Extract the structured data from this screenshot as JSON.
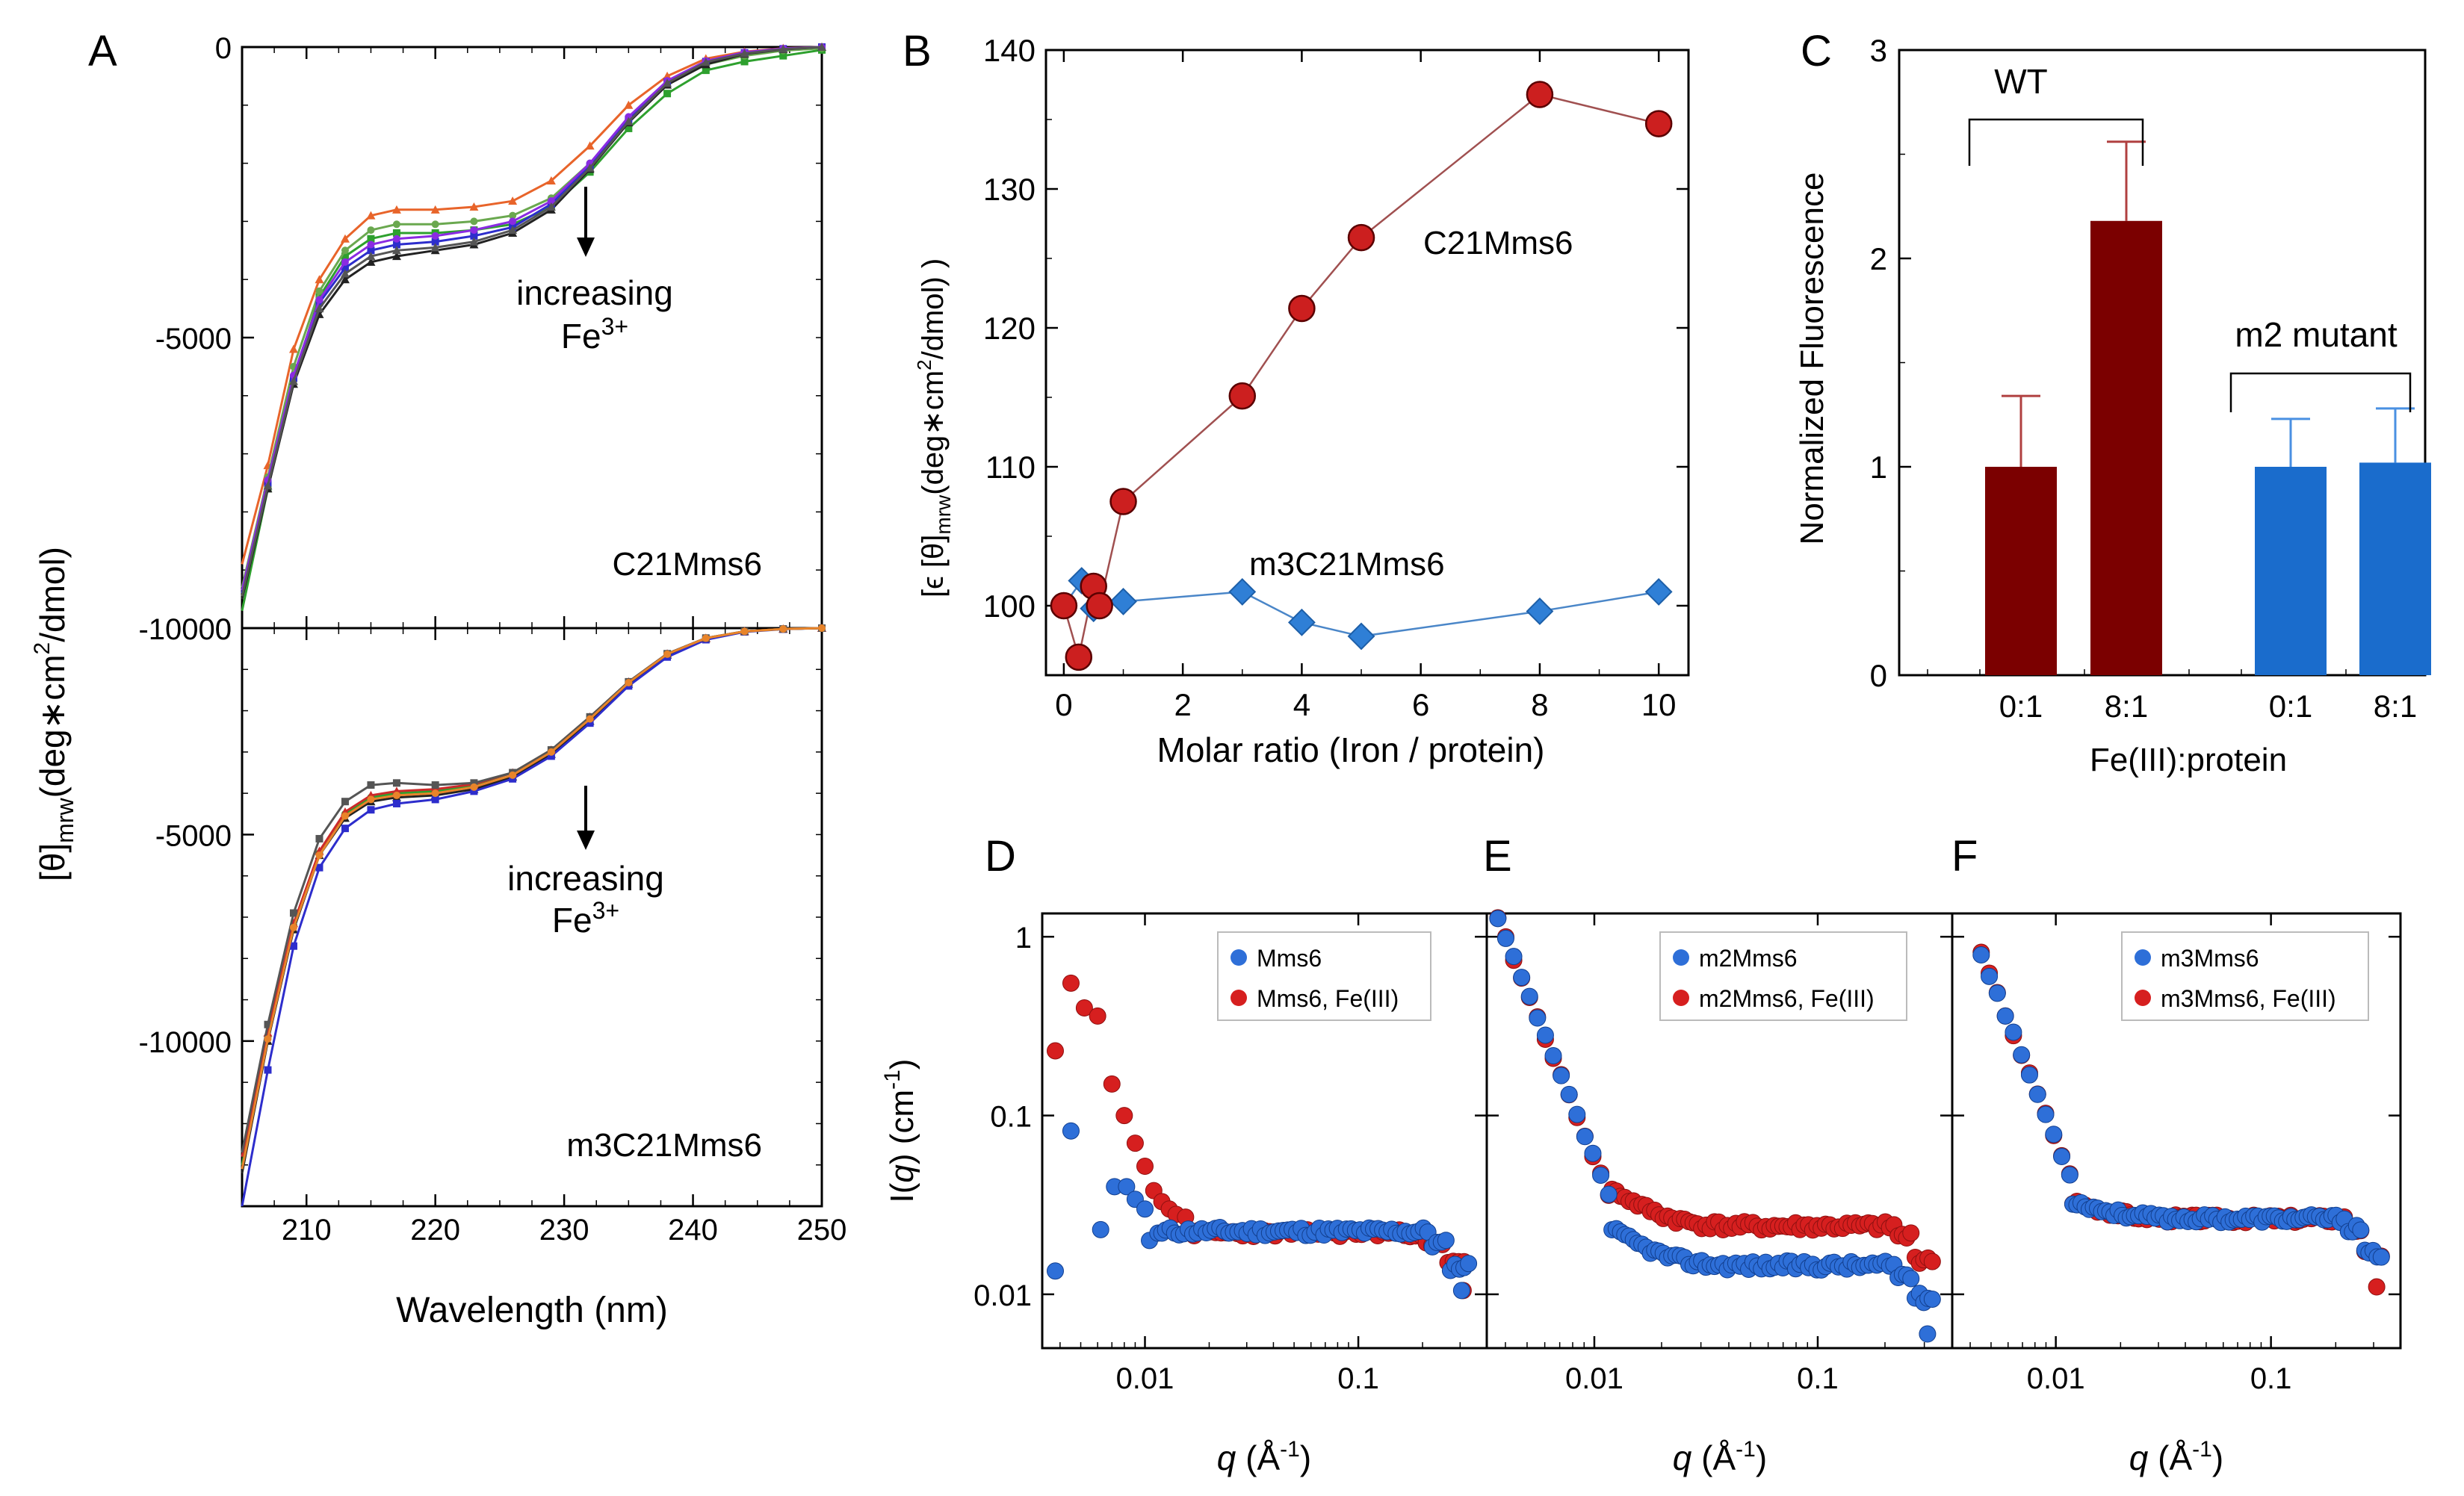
{
  "colors": {
    "dark_red": "#7b0000",
    "red_marker": "#cc1f1f",
    "red_line": "#a05050",
    "blue_marker": "#2f7fd6",
    "blue_line": "#4a86c8",
    "bar_blue": "#1a6ccc",
    "err_red": "#b04040",
    "err_blue": "#4a90e2",
    "sans_red": "#d61f1f",
    "sans_blue": "#2e6fd8"
  },
  "chart_data": [
    {
      "panel": "A",
      "type": "line",
      "panel_label": "A",
      "ylabel_main": "[θ]",
      "ylabel_sub": "mrw",
      "ylabel_rest": "(deg∗cm",
      "ylabel_sup": "2",
      "ylabel_end": "/dmol)",
      "xlabel": "Wavelength (nm)",
      "xlim": [
        205,
        250
      ],
      "x_ticks": [
        "210",
        "220",
        "230",
        "240",
        "250"
      ],
      "subplots": [
        {
          "name": "C21Mms6",
          "ylim": [
            -10000,
            0
          ],
          "y_ticks": [
            "0",
            "-5000",
            "-10000"
          ],
          "annotation": "increasing",
          "annotation_ion": "Fe",
          "annotation_sup": "3+",
          "series": [
            {
              "name": "orange",
              "color": "#e8642a",
              "x": [
                205,
                207,
                209,
                211,
                213,
                215,
                217,
                220,
                223,
                226,
                229,
                232,
                235,
                238,
                241,
                244,
                247,
                250
              ],
              "y": [
                -8900,
                -7200,
                -5200,
                -4000,
                -3300,
                -2900,
                -2800,
                -2800,
                -2750,
                -2650,
                -2300,
                -1700,
                -1000,
                -500,
                -200,
                -80,
                -20,
                0
              ]
            },
            {
              "name": "green",
              "color": "#2ea02e",
              "x": [
                205,
                207,
                209,
                211,
                213,
                215,
                217,
                220,
                223,
                226,
                229,
                232,
                235,
                238,
                241,
                244,
                247,
                250
              ],
              "y": [
                -9700,
                -7600,
                -5700,
                -4300,
                -3600,
                -3300,
                -3200,
                -3200,
                -3150,
                -3050,
                -2750,
                -2150,
                -1400,
                -800,
                -400,
                -250,
                -150,
                -50
              ]
            },
            {
              "name": "olive",
              "color": "#6aa84f",
              "x": [
                205,
                207,
                209,
                211,
                213,
                215,
                217,
                220,
                223,
                226,
                229,
                232,
                235,
                238,
                241,
                244,
                247,
                250
              ],
              "y": [
                -9300,
                -7400,
                -5500,
                -4200,
                -3500,
                -3150,
                -3050,
                -3050,
                -3000,
                -2900,
                -2600,
                -2000,
                -1250,
                -650,
                -300,
                -150,
                -60,
                -20
              ]
            },
            {
              "name": "black",
              "color": "#222222",
              "x": [
                205,
                207,
                209,
                211,
                213,
                215,
                217,
                220,
                223,
                226,
                229,
                232,
                235,
                238,
                241,
                244,
                247,
                250
              ],
              "y": [
                -9500,
                -7600,
                -5800,
                -4600,
                -4000,
                -3700,
                -3600,
                -3500,
                -3400,
                -3200,
                -2800,
                -2100,
                -1300,
                -650,
                -300,
                -120,
                -40,
                0
              ]
            },
            {
              "name": "blue",
              "color": "#2d2dcc",
              "x": [
                205,
                207,
                209,
                211,
                213,
                215,
                217,
                220,
                223,
                226,
                229,
                232,
                235,
                238,
                241,
                244,
                247,
                250
              ],
              "y": [
                -9400,
                -7500,
                -5700,
                -4400,
                -3800,
                -3500,
                -3400,
                -3350,
                -3250,
                -3100,
                -2700,
                -2050,
                -1250,
                -600,
                -250,
                -100,
                -30,
                0
              ]
            },
            {
              "name": "purple",
              "color": "#8a2be2",
              "x": [
                205,
                207,
                209,
                211,
                213,
                215,
                217,
                220,
                223,
                226,
                229,
                232,
                235,
                238,
                241,
                244,
                247,
                250
              ],
              "y": [
                -9350,
                -7450,
                -5650,
                -4350,
                -3700,
                -3400,
                -3300,
                -3250,
                -3150,
                -3000,
                -2650,
                -2000,
                -1200,
                -580,
                -240,
                -90,
                -25,
                0
              ]
            },
            {
              "name": "gray",
              "color": "#555555",
              "x": [
                205,
                207,
                209,
                211,
                213,
                215,
                217,
                220,
                223,
                226,
                229,
                232,
                235,
                238,
                241,
                244,
                247,
                250
              ],
              "y": [
                -9450,
                -7550,
                -5750,
                -4500,
                -3900,
                -3600,
                -3500,
                -3450,
                -3350,
                -3150,
                -2750,
                -2080,
                -1280,
                -620,
                -260,
                -110,
                -35,
                0
              ]
            }
          ]
        },
        {
          "name": "m3C21Mms6",
          "ylim": [
            -14000,
            0
          ],
          "y_ticks": [
            "0",
            "-5000",
            "-10000"
          ],
          "annotation": "increasing",
          "annotation_ion": "Fe",
          "annotation_sup": "3+",
          "series": [
            {
              "name": "black",
              "color": "#222222",
              "x": [
                205,
                207,
                209,
                211,
                213,
                215,
                217,
                220,
                223,
                226,
                229,
                232,
                235,
                238,
                241,
                244,
                247,
                250
              ],
              "y": [
                -13200,
                -10000,
                -7300,
                -5500,
                -4600,
                -4200,
                -4100,
                -4050,
                -3900,
                -3600,
                -3050,
                -2250,
                -1350,
                -650,
                -250,
                -80,
                -20,
                0
              ]
            },
            {
              "name": "blue",
              "color": "#2d2dcc",
              "x": [
                205,
                207,
                209,
                211,
                213,
                215,
                217,
                220,
                223,
                226,
                229,
                232,
                235,
                238,
                241,
                244,
                247,
                250
              ],
              "y": [
                -14000,
                -10700,
                -7700,
                -5800,
                -4850,
                -4400,
                -4250,
                -4150,
                -3950,
                -3650,
                -3100,
                -2300,
                -1400,
                -700,
                -280,
                -90,
                -25,
                0
              ]
            },
            {
              "name": "green",
              "color": "#2ea02e",
              "x": [
                205,
                207,
                209,
                211,
                213,
                215,
                217,
                220,
                223,
                226,
                229,
                232,
                235,
                238,
                241,
                244,
                247,
                250
              ],
              "y": [
                -13000,
                -9900,
                -7200,
                -5450,
                -4500,
                -4100,
                -4000,
                -3950,
                -3800,
                -3500,
                -2950,
                -2150,
                -1300,
                -620,
                -240,
                -80,
                -20,
                0
              ]
            },
            {
              "name": "red",
              "color": "#cc2a2a",
              "x": [
                205,
                207,
                209,
                211,
                213,
                215,
                217,
                220,
                223,
                226,
                229,
                232,
                235,
                238,
                241,
                244,
                247,
                250
              ],
              "y": [
                -12800,
                -9800,
                -7150,
                -5400,
                -4450,
                -4050,
                -3950,
                -3900,
                -3780,
                -3500,
                -2950,
                -2150,
                -1300,
                -620,
                -240,
                -80,
                -20,
                0
              ]
            },
            {
              "name": "gray",
              "color": "#555555",
              "x": [
                205,
                207,
                209,
                211,
                213,
                215,
                217,
                220,
                223,
                226,
                229,
                232,
                235,
                238,
                241,
                244,
                247,
                250
              ],
              "y": [
                -12700,
                -9600,
                -6900,
                -5100,
                -4200,
                -3800,
                -3750,
                -3800,
                -3750,
                -3500,
                -2950,
                -2150,
                -1300,
                -620,
                -240,
                -80,
                -20,
                0
              ]
            },
            {
              "name": "orange",
              "color": "#e8842a",
              "x": [
                205,
                207,
                209,
                211,
                213,
                215,
                217,
                220,
                223,
                226,
                229,
                232,
                235,
                238,
                241,
                244,
                247,
                250
              ],
              "y": [
                -13100,
                -9950,
                -7250,
                -5500,
                -4550,
                -4150,
                -4050,
                -4000,
                -3850,
                -3560,
                -3000,
                -2200,
                -1320,
                -630,
                -245,
                -80,
                -20,
                0
              ]
            }
          ]
        }
      ]
    },
    {
      "panel": "B",
      "type": "line",
      "panel_label": "B",
      "xlabel": "Molar ratio (Iron / protein)",
      "ylabel_a": "[ϵ [θ]",
      "ylabel_sub": "mrw",
      "ylabel_rest": "(deg∗cm",
      "ylabel_sup": "2",
      "ylabel_end": "/dmol)  )",
      "xlim": [
        -0.3,
        10.5
      ],
      "ylim": [
        95,
        140
      ],
      "x_ticks": [
        "0",
        "2",
        "4",
        "6",
        "8",
        "10"
      ],
      "y_ticks": [
        "100",
        "110",
        "120",
        "130",
        "140"
      ],
      "series": [
        {
          "name": "C21Mms6",
          "label": "C21Mms6",
          "marker": "circle",
          "x": [
            0,
            0.25,
            0.5,
            0.6,
            1,
            3,
            4,
            5,
            8,
            10
          ],
          "y": [
            100,
            96.3,
            101.4,
            100,
            107.5,
            115.1,
            121.4,
            126.5,
            136.8,
            134.7
          ]
        },
        {
          "name": "m3C21Mms6",
          "label": "m3C21Mms6",
          "marker": "diamond",
          "x": [
            0,
            0.3,
            0.5,
            1,
            3,
            4,
            5,
            8,
            10
          ],
          "y": [
            100,
            101.8,
            99.8,
            100.3,
            101,
            98.8,
            97.8,
            99.6,
            101
          ]
        }
      ]
    },
    {
      "panel": "C",
      "type": "bar",
      "panel_label": "C",
      "ylabel": "Normalized Fluorescence",
      "xlabel": "Fe(III):protein",
      "ylim": [
        0,
        3
      ],
      "y_ticks": [
        "0",
        "1",
        "2",
        "3"
      ],
      "categories": [
        "0:1",
        "8:1",
        "0:1",
        "8:1"
      ],
      "values": [
        1.0,
        2.18,
        1.0,
        1.02
      ],
      "errors": [
        0.34,
        0.38,
        0.23,
        0.26
      ],
      "groups": [
        {
          "label": "WT",
          "bars": [
            0,
            1
          ]
        },
        {
          "label": "m2 mutant",
          "bars": [
            2,
            3
          ]
        }
      ]
    },
    {
      "panel": "D",
      "type": "scatter",
      "panel_label": "D",
      "ylabel_pre": "I(",
      "ylabel_q": "q",
      "ylabel_post": ") (cm",
      "ylabel_sup": "-1",
      "ylabel_end": ")",
      "xlabel_q": "q",
      "xlabel_rest": " (Å",
      "xlabel_sup": "-1",
      "xlabel_end": ")",
      "x_scale": "log",
      "y_scale": "log",
      "xlim": [
        0.0033,
        0.4
      ],
      "ylim": [
        0.005,
        1.35
      ],
      "x_ticks": [
        "0.01",
        "0.1"
      ],
      "y_ticks": [
        "1",
        "0.1",
        "0.01"
      ],
      "legend": [
        "Mms6",
        "Mms6, Fe(III)"
      ],
      "series": [
        {
          "name": "Mms6",
          "profile": "mms6_blue"
        },
        {
          "name": "Mms6, Fe(III)",
          "profile": "mms6_red"
        }
      ]
    },
    {
      "panel": "E",
      "type": "scatter",
      "panel_label": "E",
      "xlabel_q": "q",
      "xlabel_rest": " (Å",
      "xlabel_sup": "-1",
      "xlabel_end": ")",
      "x_scale": "log",
      "y_scale": "log",
      "xlim": [
        0.0033,
        0.4
      ],
      "ylim": [
        0.005,
        1.35
      ],
      "x_ticks": [
        "0.01",
        "0.1"
      ],
      "legend": [
        "m2Mms6",
        "m2Mms6, Fe(III)"
      ],
      "series": [
        {
          "name": "m2Mms6",
          "profile": "m2_blue"
        },
        {
          "name": "m2Mms6, Fe(III)",
          "profile": "m2_red"
        }
      ]
    },
    {
      "panel": "F",
      "type": "scatter",
      "panel_label": "F",
      "xlabel_q": "q",
      "xlabel_rest": " (Å",
      "xlabel_sup": "-1",
      "xlabel_end": ")",
      "x_scale": "log",
      "y_scale": "log",
      "xlim": [
        0.0033,
        0.4
      ],
      "ylim": [
        0.005,
        1.35
      ],
      "x_ticks": [
        "0.01",
        "0.1"
      ],
      "legend": [
        "m3Mms6",
        "m3Mms6, Fe(III)"
      ],
      "series": [
        {
          "name": "m3Mms6",
          "profile": "m3_blue"
        },
        {
          "name": "m3Mms6, Fe(III)",
          "profile": "m3_red"
        }
      ]
    }
  ]
}
